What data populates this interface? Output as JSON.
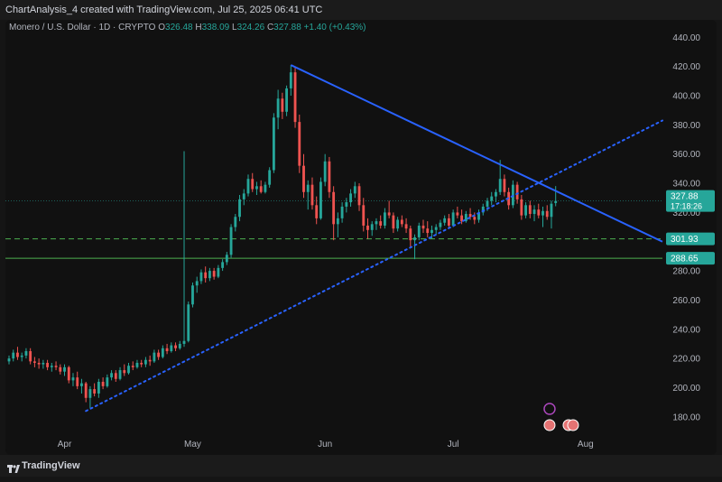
{
  "header": {
    "caption": "ChartAnalysis_4 created with TradingView.com, Jul 25, 2025 06:41 UTC"
  },
  "symbol": {
    "name": "Monero / U.S. Dollar · 1D · CRYPTO",
    "o_label": "O",
    "o_value": "326.48",
    "h_label": "H",
    "h_value": "338.09",
    "l_label": "L",
    "l_value": "324.26",
    "c_label": "C",
    "c_value": "327.88",
    "change": "+1.40 (+0.43%)"
  },
  "footer": {
    "brand": "TradingView"
  },
  "colors": {
    "up": "#26a69a",
    "down": "#ef5350",
    "trend": "#2962ff",
    "support": "#4caf50",
    "price_tag": "#26a69a"
  },
  "chart_data": {
    "type": "candlestick",
    "x_range": [
      "2025-03-19",
      "2025-08-19"
    ],
    "y_range": [
      170,
      447
    ],
    "y_ticks": [
      180,
      200,
      220,
      240,
      260,
      280,
      300,
      320,
      340,
      360,
      380,
      400,
      420,
      440
    ],
    "y_tick_labels": [
      "180.00",
      "200.00",
      "220.00",
      "240.00",
      "260.00",
      "280.00",
      "300.00",
      "320.00",
      "340.00",
      "360.00",
      "380.00",
      "400.00",
      "420.00",
      "440.00"
    ],
    "x_ticks": [
      {
        "date": "2025-04-01",
        "label": "Apr"
      },
      {
        "date": "2025-05-01",
        "label": "May"
      },
      {
        "date": "2025-06-01",
        "label": "Jun"
      },
      {
        "date": "2025-07-01",
        "label": "Jul"
      },
      {
        "date": "2025-08-01",
        "label": "Aug"
      }
    ],
    "candles": [
      {
        "date": "2025-03-19",
        "o": 218,
        "h": 222,
        "l": 216,
        "c": 220
      },
      {
        "date": "2025-03-20",
        "o": 220,
        "h": 226,
        "l": 218,
        "c": 224
      },
      {
        "date": "2025-03-21",
        "o": 224,
        "h": 228,
        "l": 219,
        "c": 221
      },
      {
        "date": "2025-03-22",
        "o": 221,
        "h": 224,
        "l": 218,
        "c": 222
      },
      {
        "date": "2025-03-23",
        "o": 222,
        "h": 227,
        "l": 220,
        "c": 225
      },
      {
        "date": "2025-03-24",
        "o": 225,
        "h": 227,
        "l": 216,
        "c": 218
      },
      {
        "date": "2025-03-25",
        "o": 218,
        "h": 221,
        "l": 214,
        "c": 217
      },
      {
        "date": "2025-03-26",
        "o": 217,
        "h": 220,
        "l": 213,
        "c": 216
      },
      {
        "date": "2025-03-27",
        "o": 216,
        "h": 219,
        "l": 213,
        "c": 217
      },
      {
        "date": "2025-03-28",
        "o": 217,
        "h": 219,
        "l": 212,
        "c": 214
      },
      {
        "date": "2025-03-29",
        "o": 214,
        "h": 217,
        "l": 211,
        "c": 215
      },
      {
        "date": "2025-03-30",
        "o": 215,
        "h": 218,
        "l": 212,
        "c": 214
      },
      {
        "date": "2025-03-31",
        "o": 214,
        "h": 216,
        "l": 209,
        "c": 211
      },
      {
        "date": "2025-04-01",
        "o": 211,
        "h": 216,
        "l": 208,
        "c": 214
      },
      {
        "date": "2025-04-02",
        "o": 214,
        "h": 215,
        "l": 203,
        "c": 205
      },
      {
        "date": "2025-04-03",
        "o": 205,
        "h": 210,
        "l": 201,
        "c": 207
      },
      {
        "date": "2025-04-04",
        "o": 207,
        "h": 211,
        "l": 199,
        "c": 201
      },
      {
        "date": "2025-04-05",
        "o": 201,
        "h": 206,
        "l": 196,
        "c": 203
      },
      {
        "date": "2025-04-06",
        "o": 203,
        "h": 204,
        "l": 190,
        "c": 193
      },
      {
        "date": "2025-04-07",
        "o": 193,
        "h": 201,
        "l": 186,
        "c": 199
      },
      {
        "date": "2025-04-08",
        "o": 199,
        "h": 203,
        "l": 194,
        "c": 196
      },
      {
        "date": "2025-04-09",
        "o": 196,
        "h": 206,
        "l": 193,
        "c": 204
      },
      {
        "date": "2025-04-10",
        "o": 204,
        "h": 207,
        "l": 199,
        "c": 201
      },
      {
        "date": "2025-04-11",
        "o": 201,
        "h": 209,
        "l": 200,
        "c": 207
      },
      {
        "date": "2025-04-12",
        "o": 207,
        "h": 212,
        "l": 205,
        "c": 210
      },
      {
        "date": "2025-04-13",
        "o": 210,
        "h": 212,
        "l": 204,
        "c": 206
      },
      {
        "date": "2025-04-14",
        "o": 206,
        "h": 214,
        "l": 205,
        "c": 212
      },
      {
        "date": "2025-04-15",
        "o": 212,
        "h": 216,
        "l": 208,
        "c": 210
      },
      {
        "date": "2025-04-16",
        "o": 210,
        "h": 217,
        "l": 209,
        "c": 215
      },
      {
        "date": "2025-04-17",
        "o": 215,
        "h": 218,
        "l": 212,
        "c": 214
      },
      {
        "date": "2025-04-18",
        "o": 214,
        "h": 219,
        "l": 213,
        "c": 217
      },
      {
        "date": "2025-04-19",
        "o": 217,
        "h": 219,
        "l": 214,
        "c": 216
      },
      {
        "date": "2025-04-20",
        "o": 216,
        "h": 221,
        "l": 214,
        "c": 219
      },
      {
        "date": "2025-04-21",
        "o": 219,
        "h": 222,
        "l": 215,
        "c": 218
      },
      {
        "date": "2025-04-22",
        "o": 218,
        "h": 226,
        "l": 217,
        "c": 224
      },
      {
        "date": "2025-04-23",
        "o": 224,
        "h": 226,
        "l": 219,
        "c": 221
      },
      {
        "date": "2025-04-24",
        "o": 221,
        "h": 229,
        "l": 220,
        "c": 227
      },
      {
        "date": "2025-04-25",
        "o": 227,
        "h": 230,
        "l": 223,
        "c": 225
      },
      {
        "date": "2025-04-26",
        "o": 225,
        "h": 231,
        "l": 224,
        "c": 229
      },
      {
        "date": "2025-04-27",
        "o": 229,
        "h": 231,
        "l": 225,
        "c": 227
      },
      {
        "date": "2025-04-28",
        "o": 227,
        "h": 232,
        "l": 226,
        "c": 230
      },
      {
        "date": "2025-04-29",
        "o": 230,
        "h": 362,
        "l": 228,
        "c": 232
      },
      {
        "date": "2025-04-30",
        "o": 232,
        "h": 259,
        "l": 231,
        "c": 257
      },
      {
        "date": "2025-05-01",
        "o": 257,
        "h": 272,
        "l": 255,
        "c": 270
      },
      {
        "date": "2025-05-02",
        "o": 270,
        "h": 276,
        "l": 265,
        "c": 273
      },
      {
        "date": "2025-05-03",
        "o": 273,
        "h": 281,
        "l": 271,
        "c": 279
      },
      {
        "date": "2025-05-04",
        "o": 279,
        "h": 283,
        "l": 272,
        "c": 275
      },
      {
        "date": "2025-05-05",
        "o": 275,
        "h": 282,
        "l": 273,
        "c": 280
      },
      {
        "date": "2025-05-06",
        "o": 280,
        "h": 282,
        "l": 274,
        "c": 276
      },
      {
        "date": "2025-05-07",
        "o": 276,
        "h": 284,
        "l": 275,
        "c": 282
      },
      {
        "date": "2025-05-08",
        "o": 282,
        "h": 288,
        "l": 280,
        "c": 286
      },
      {
        "date": "2025-05-09",
        "o": 286,
        "h": 293,
        "l": 284,
        "c": 291
      },
      {
        "date": "2025-05-10",
        "o": 291,
        "h": 312,
        "l": 289,
        "c": 310
      },
      {
        "date": "2025-05-11",
        "o": 310,
        "h": 319,
        "l": 307,
        "c": 317
      },
      {
        "date": "2025-05-12",
        "o": 317,
        "h": 332,
        "l": 314,
        "c": 329
      },
      {
        "date": "2025-05-13",
        "o": 329,
        "h": 336,
        "l": 325,
        "c": 333
      },
      {
        "date": "2025-05-14",
        "o": 333,
        "h": 346,
        "l": 331,
        "c": 343
      },
      {
        "date": "2025-05-15",
        "o": 343,
        "h": 347,
        "l": 334,
        "c": 336
      },
      {
        "date": "2025-05-16",
        "o": 336,
        "h": 341,
        "l": 332,
        "c": 338
      },
      {
        "date": "2025-05-17",
        "o": 338,
        "h": 342,
        "l": 333,
        "c": 334
      },
      {
        "date": "2025-05-18",
        "o": 334,
        "h": 341,
        "l": 333,
        "c": 339
      },
      {
        "date": "2025-05-19",
        "o": 339,
        "h": 351,
        "l": 337,
        "c": 349
      },
      {
        "date": "2025-05-20",
        "o": 349,
        "h": 388,
        "l": 347,
        "c": 385
      },
      {
        "date": "2025-05-21",
        "o": 385,
        "h": 404,
        "l": 377,
        "c": 398
      },
      {
        "date": "2025-05-22",
        "o": 398,
        "h": 402,
        "l": 384,
        "c": 389
      },
      {
        "date": "2025-05-23",
        "o": 389,
        "h": 407,
        "l": 386,
        "c": 405
      },
      {
        "date": "2025-05-24",
        "o": 405,
        "h": 421,
        "l": 400,
        "c": 416
      },
      {
        "date": "2025-05-25",
        "o": 416,
        "h": 420,
        "l": 378,
        "c": 382
      },
      {
        "date": "2025-05-26",
        "o": 382,
        "h": 387,
        "l": 347,
        "c": 352
      },
      {
        "date": "2025-05-27",
        "o": 352,
        "h": 360,
        "l": 330,
        "c": 334
      },
      {
        "date": "2025-05-28",
        "o": 334,
        "h": 342,
        "l": 322,
        "c": 339
      },
      {
        "date": "2025-05-29",
        "o": 339,
        "h": 344,
        "l": 322,
        "c": 325
      },
      {
        "date": "2025-05-30",
        "o": 325,
        "h": 331,
        "l": 312,
        "c": 316
      },
      {
        "date": "2025-05-31",
        "o": 316,
        "h": 344,
        "l": 315,
        "c": 341
      },
      {
        "date": "2025-06-01",
        "o": 341,
        "h": 360,
        "l": 338,
        "c": 355
      },
      {
        "date": "2025-06-02",
        "o": 355,
        "h": 358,
        "l": 330,
        "c": 334
      },
      {
        "date": "2025-06-03",
        "o": 334,
        "h": 338,
        "l": 301,
        "c": 312
      },
      {
        "date": "2025-06-04",
        "o": 312,
        "h": 320,
        "l": 303,
        "c": 316
      },
      {
        "date": "2025-06-05",
        "o": 316,
        "h": 327,
        "l": 313,
        "c": 324
      },
      {
        "date": "2025-06-06",
        "o": 324,
        "h": 330,
        "l": 320,
        "c": 327
      },
      {
        "date": "2025-06-07",
        "o": 327,
        "h": 336,
        "l": 324,
        "c": 333
      },
      {
        "date": "2025-06-08",
        "o": 333,
        "h": 341,
        "l": 330,
        "c": 338
      },
      {
        "date": "2025-06-09",
        "o": 338,
        "h": 340,
        "l": 321,
        "c": 325
      },
      {
        "date": "2025-06-10",
        "o": 325,
        "h": 330,
        "l": 307,
        "c": 311
      },
      {
        "date": "2025-06-11",
        "o": 311,
        "h": 316,
        "l": 302,
        "c": 308
      },
      {
        "date": "2025-06-12",
        "o": 308,
        "h": 314,
        "l": 304,
        "c": 312
      },
      {
        "date": "2025-06-13",
        "o": 312,
        "h": 316,
        "l": 308,
        "c": 314
      },
      {
        "date": "2025-06-14",
        "o": 314,
        "h": 318,
        "l": 309,
        "c": 311
      },
      {
        "date": "2025-06-15",
        "o": 311,
        "h": 323,
        "l": 309,
        "c": 320
      },
      {
        "date": "2025-06-16",
        "o": 320,
        "h": 328,
        "l": 316,
        "c": 318
      },
      {
        "date": "2025-06-17",
        "o": 318,
        "h": 320,
        "l": 306,
        "c": 309
      },
      {
        "date": "2025-06-18",
        "o": 309,
        "h": 317,
        "l": 307,
        "c": 315
      },
      {
        "date": "2025-06-19",
        "o": 315,
        "h": 318,
        "l": 310,
        "c": 312
      },
      {
        "date": "2025-06-20",
        "o": 312,
        "h": 316,
        "l": 306,
        "c": 309
      },
      {
        "date": "2025-06-21",
        "o": 309,
        "h": 311,
        "l": 296,
        "c": 301
      },
      {
        "date": "2025-06-22",
        "o": 301,
        "h": 305,
        "l": 288,
        "c": 303
      },
      {
        "date": "2025-06-23",
        "o": 303,
        "h": 313,
        "l": 301,
        "c": 311
      },
      {
        "date": "2025-06-24",
        "o": 311,
        "h": 315,
        "l": 306,
        "c": 309
      },
      {
        "date": "2025-06-25",
        "o": 309,
        "h": 314,
        "l": 303,
        "c": 306
      },
      {
        "date": "2025-06-26",
        "o": 306,
        "h": 311,
        "l": 302,
        "c": 308
      },
      {
        "date": "2025-06-27",
        "o": 308,
        "h": 312,
        "l": 305,
        "c": 310
      },
      {
        "date": "2025-06-28",
        "o": 310,
        "h": 315,
        "l": 308,
        "c": 313
      },
      {
        "date": "2025-06-29",
        "o": 313,
        "h": 318,
        "l": 311,
        "c": 316
      },
      {
        "date": "2025-06-30",
        "o": 316,
        "h": 319,
        "l": 309,
        "c": 311
      },
      {
        "date": "2025-07-01",
        "o": 311,
        "h": 322,
        "l": 310,
        "c": 320
      },
      {
        "date": "2025-07-02",
        "o": 320,
        "h": 324,
        "l": 316,
        "c": 318
      },
      {
        "date": "2025-07-03",
        "o": 318,
        "h": 322,
        "l": 312,
        "c": 314
      },
      {
        "date": "2025-07-04",
        "o": 314,
        "h": 321,
        "l": 313,
        "c": 319
      },
      {
        "date": "2025-07-05",
        "o": 319,
        "h": 323,
        "l": 315,
        "c": 317
      },
      {
        "date": "2025-07-06",
        "o": 317,
        "h": 320,
        "l": 312,
        "c": 315
      },
      {
        "date": "2025-07-07",
        "o": 315,
        "h": 322,
        "l": 313,
        "c": 320
      },
      {
        "date": "2025-07-08",
        "o": 320,
        "h": 326,
        "l": 318,
        "c": 324
      },
      {
        "date": "2025-07-09",
        "o": 324,
        "h": 330,
        "l": 321,
        "c": 328
      },
      {
        "date": "2025-07-10",
        "o": 328,
        "h": 334,
        "l": 325,
        "c": 331
      },
      {
        "date": "2025-07-11",
        "o": 331,
        "h": 336,
        "l": 327,
        "c": 334
      },
      {
        "date": "2025-07-12",
        "o": 334,
        "h": 356,
        "l": 332,
        "c": 343
      },
      {
        "date": "2025-07-13",
        "o": 343,
        "h": 346,
        "l": 331,
        "c": 334
      },
      {
        "date": "2025-07-14",
        "o": 334,
        "h": 337,
        "l": 322,
        "c": 325
      },
      {
        "date": "2025-07-15",
        "o": 325,
        "h": 342,
        "l": 323,
        "c": 339
      },
      {
        "date": "2025-07-16",
        "o": 339,
        "h": 341,
        "l": 326,
        "c": 329
      },
      {
        "date": "2025-07-17",
        "o": 329,
        "h": 332,
        "l": 315,
        "c": 318
      },
      {
        "date": "2025-07-18",
        "o": 318,
        "h": 327,
        "l": 316,
        "c": 325
      },
      {
        "date": "2025-07-19",
        "o": 325,
        "h": 328,
        "l": 316,
        "c": 319
      },
      {
        "date": "2025-07-20",
        "o": 319,
        "h": 325,
        "l": 314,
        "c": 322
      },
      {
        "date": "2025-07-21",
        "o": 322,
        "h": 326,
        "l": 316,
        "c": 318
      },
      {
        "date": "2025-07-22",
        "o": 318,
        "h": 324,
        "l": 310,
        "c": 321
      },
      {
        "date": "2025-07-23",
        "o": 321,
        "h": 325,
        "l": 315,
        "c": 317
      },
      {
        "date": "2025-07-24",
        "o": 317,
        "h": 328,
        "l": 309,
        "c": 326
      },
      {
        "date": "2025-07-25",
        "o": 326.48,
        "h": 338.09,
        "l": 324.26,
        "c": 327.88
      }
    ],
    "trendlines": [
      {
        "style": "solid",
        "from": {
          "date": "2025-05-24",
          "price": 421
        },
        "to": {
          "date": "2025-08-19",
          "price": 300
        }
      },
      {
        "style": "dotted",
        "from": {
          "date": "2025-04-06",
          "price": 184
        },
        "to": {
          "date": "2025-08-19",
          "price": 383
        }
      }
    ],
    "levels": [
      {
        "price": 301.93,
        "label": "301.93",
        "style": "dashed"
      },
      {
        "price": 288.65,
        "label": "288.65",
        "style": "solid"
      }
    ],
    "last_price": {
      "price": 327.88,
      "label": "327.88",
      "countdown": "17:18:26"
    },
    "grid": false
  }
}
